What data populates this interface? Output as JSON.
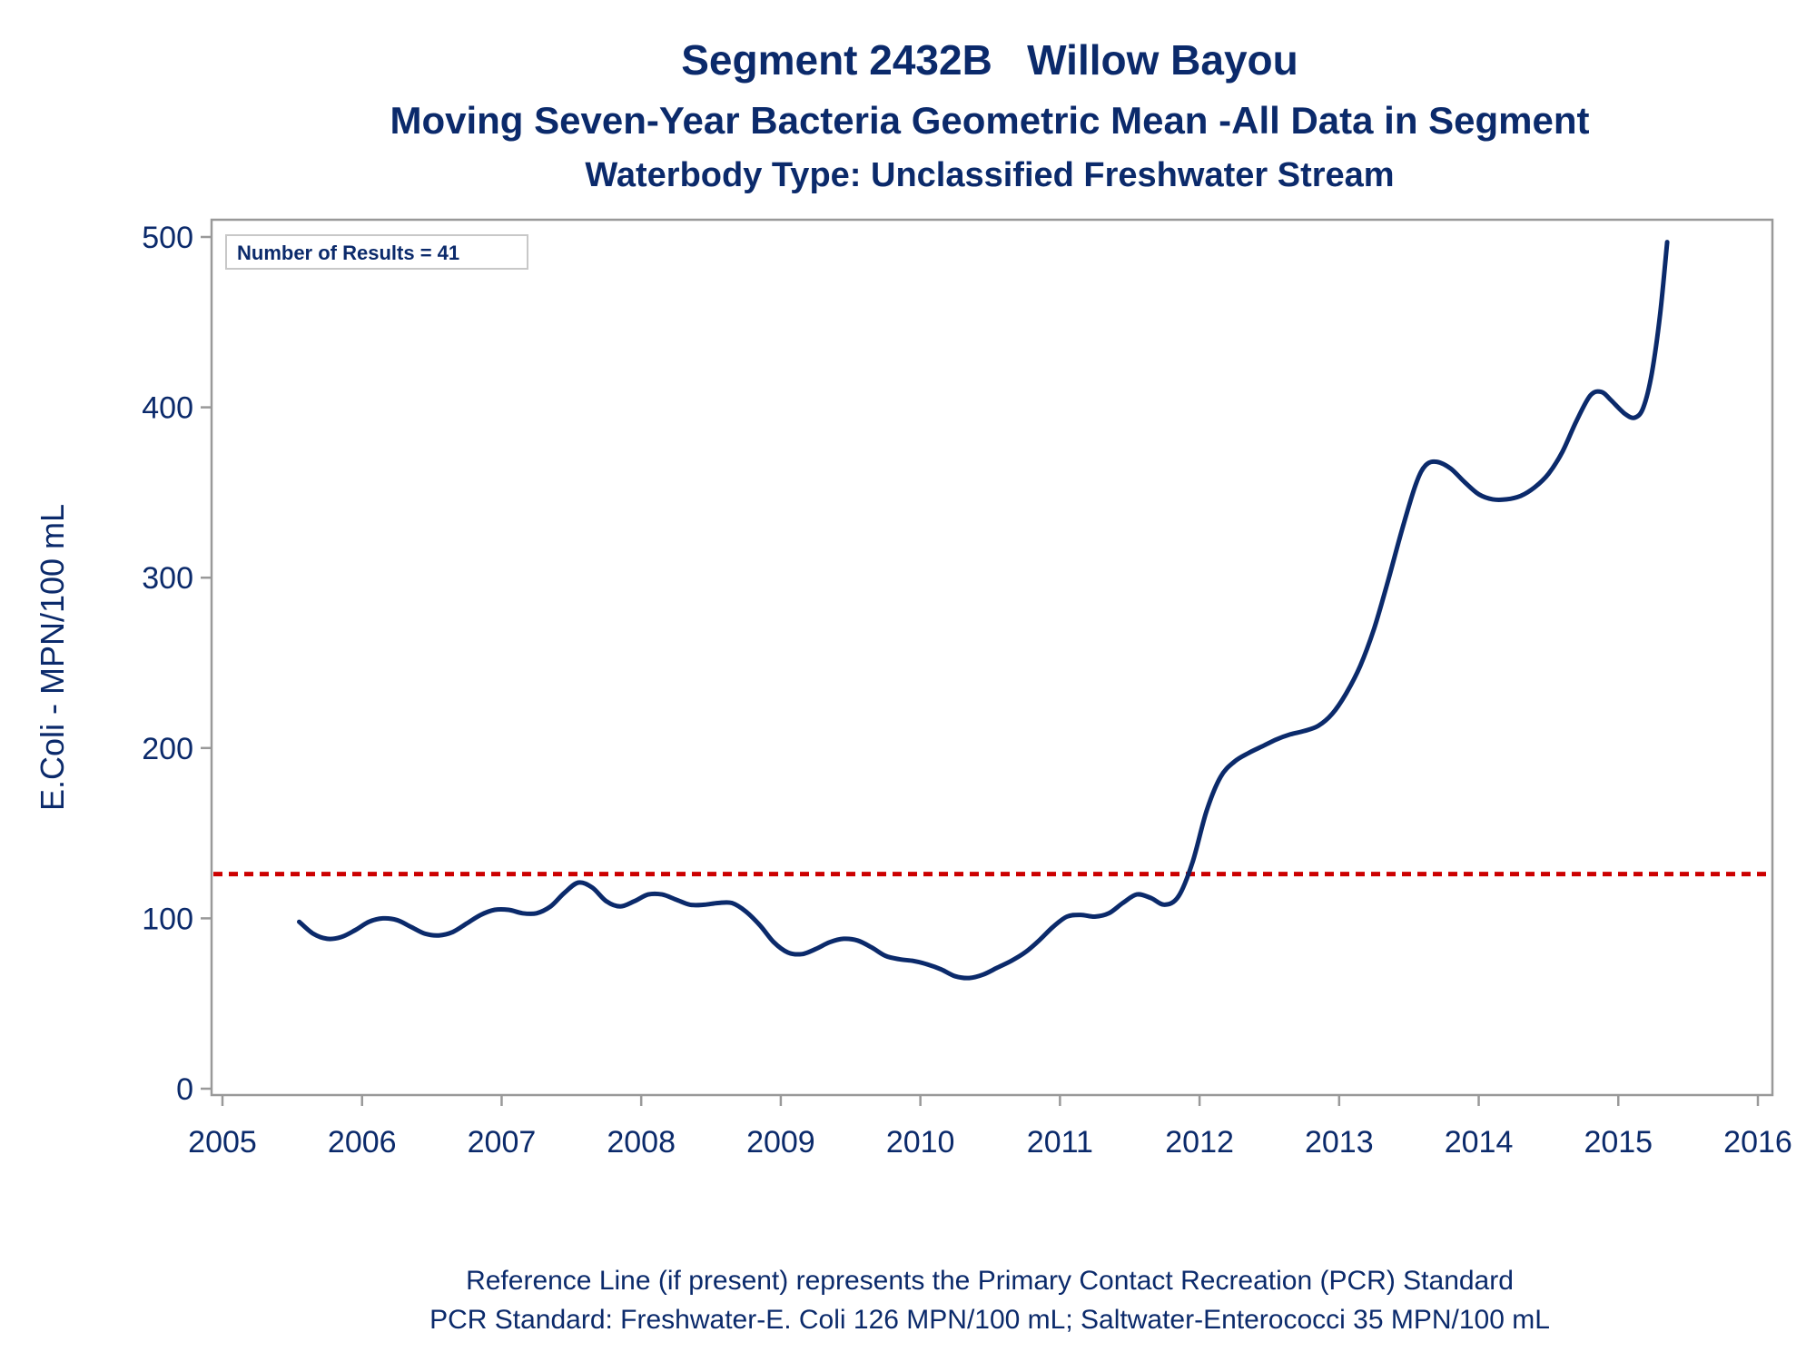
{
  "colors": {
    "text": "#0b2a6b",
    "series": "#0b2a6b",
    "reference": "#cc0000",
    "frame": "#999999"
  },
  "chart_data": {
    "type": "line",
    "title": "Segment 2432B   Willow Bayou",
    "subtitle": "Moving Seven-Year Bacteria Geometric Mean -All Data in Segment",
    "subtitle2": "Waterbody Type: Unclassified Freshwater Stream",
    "xlabel": "",
    "ylabel": "E.Coli - MPN/100 mL",
    "xlim": [
      2005,
      2016
    ],
    "ylim": [
      0,
      500
    ],
    "xticks": [
      "2005",
      "2006",
      "2007",
      "2008",
      "2009",
      "2010",
      "2011",
      "2012",
      "2013",
      "2014",
      "2015",
      "2016"
    ],
    "yticks": [
      "0",
      "100",
      "200",
      "300",
      "400",
      "500"
    ],
    "grid": false,
    "inset_label": "Number of Results = 41",
    "reference_line": {
      "y": 126
    },
    "series": [
      {
        "points": [
          [
            2005.55,
            98
          ],
          [
            2005.65,
            91
          ],
          [
            2005.75,
            88
          ],
          [
            2005.85,
            89
          ],
          [
            2005.95,
            93
          ],
          [
            2006.05,
            98
          ],
          [
            2006.15,
            100
          ],
          [
            2006.25,
            99
          ],
          [
            2006.35,
            95
          ],
          [
            2006.45,
            91
          ],
          [
            2006.55,
            90
          ],
          [
            2006.65,
            92
          ],
          [
            2006.75,
            97
          ],
          [
            2006.85,
            102
          ],
          [
            2006.95,
            105
          ],
          [
            2007.05,
            105
          ],
          [
            2007.15,
            103
          ],
          [
            2007.25,
            103
          ],
          [
            2007.35,
            107
          ],
          [
            2007.45,
            115
          ],
          [
            2007.55,
            121
          ],
          [
            2007.65,
            118
          ],
          [
            2007.75,
            110
          ],
          [
            2007.85,
            107
          ],
          [
            2007.95,
            110
          ],
          [
            2008.05,
            114
          ],
          [
            2008.15,
            114
          ],
          [
            2008.25,
            111
          ],
          [
            2008.35,
            108
          ],
          [
            2008.45,
            108
          ],
          [
            2008.55,
            109
          ],
          [
            2008.65,
            109
          ],
          [
            2008.75,
            104
          ],
          [
            2008.85,
            96
          ],
          [
            2008.95,
            86
          ],
          [
            2009.05,
            80
          ],
          [
            2009.15,
            79
          ],
          [
            2009.25,
            82
          ],
          [
            2009.35,
            86
          ],
          [
            2009.45,
            88
          ],
          [
            2009.55,
            87
          ],
          [
            2009.65,
            83
          ],
          [
            2009.75,
            78
          ],
          [
            2009.85,
            76
          ],
          [
            2009.95,
            75
          ],
          [
            2010.05,
            73
          ],
          [
            2010.15,
            70
          ],
          [
            2010.25,
            66
          ],
          [
            2010.35,
            65
          ],
          [
            2010.45,
            67
          ],
          [
            2010.55,
            71
          ],
          [
            2010.65,
            75
          ],
          [
            2010.75,
            80
          ],
          [
            2010.85,
            87
          ],
          [
            2010.95,
            95
          ],
          [
            2011.05,
            101
          ],
          [
            2011.15,
            102
          ],
          [
            2011.25,
            101
          ],
          [
            2011.35,
            103
          ],
          [
            2011.45,
            109
          ],
          [
            2011.55,
            114
          ],
          [
            2011.65,
            112
          ],
          [
            2011.75,
            108
          ],
          [
            2011.85,
            113
          ],
          [
            2011.95,
            133
          ],
          [
            2012.05,
            163
          ],
          [
            2012.15,
            183
          ],
          [
            2012.25,
            192
          ],
          [
            2012.35,
            197
          ],
          [
            2012.45,
            201
          ],
          [
            2012.55,
            205
          ],
          [
            2012.65,
            208
          ],
          [
            2012.75,
            210
          ],
          [
            2012.85,
            213
          ],
          [
            2012.95,
            220
          ],
          [
            2013.05,
            232
          ],
          [
            2013.15,
            248
          ],
          [
            2013.25,
            270
          ],
          [
            2013.35,
            298
          ],
          [
            2013.45,
            328
          ],
          [
            2013.55,
            355
          ],
          [
            2013.62,
            366
          ],
          [
            2013.7,
            368
          ],
          [
            2013.8,
            364
          ],
          [
            2013.9,
            356
          ],
          [
            2014.0,
            349
          ],
          [
            2014.1,
            346
          ],
          [
            2014.2,
            346
          ],
          [
            2014.3,
            348
          ],
          [
            2014.4,
            353
          ],
          [
            2014.5,
            361
          ],
          [
            2014.6,
            374
          ],
          [
            2014.7,
            392
          ],
          [
            2014.8,
            407
          ],
          [
            2014.88,
            409
          ],
          [
            2014.95,
            404
          ],
          [
            2015.05,
            396
          ],
          [
            2015.12,
            394
          ],
          [
            2015.18,
            400
          ],
          [
            2015.24,
            420
          ],
          [
            2015.3,
            455
          ],
          [
            2015.35,
            497
          ]
        ]
      }
    ]
  },
  "footnote": {
    "line1": "Reference Line (if present) represents the Primary Contact Recreation (PCR) Standard",
    "line2": "PCR Standard: Freshwater-E. Coli 126 MPN/100 mL; Saltwater-Enterococci 35 MPN/100 mL"
  }
}
